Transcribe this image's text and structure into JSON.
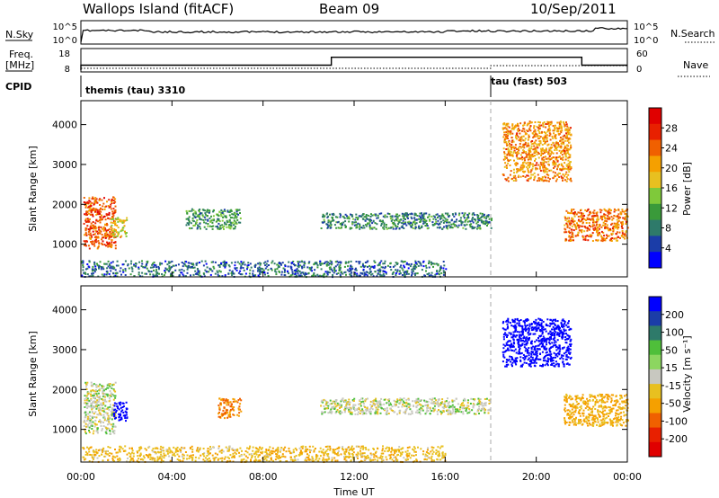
{
  "header": {
    "station": "Wallops Island (fitACF)",
    "beam": "Beam 09",
    "date": "10/Sep/2011"
  },
  "top_panels": {
    "nsky": {
      "label": "N.Sky",
      "ticks": [
        "10^5",
        "10^0"
      ]
    },
    "nsearch": {
      "label": "N.Search",
      "ticks": [
        "10^5",
        "10^0"
      ]
    },
    "freq": {
      "label_line1": "Freq.",
      "label_line2": "[MHz]",
      "ticks": [
        "18",
        "8"
      ]
    },
    "nave": {
      "label": "Nave",
      "ticks": [
        "60",
        "0"
      ]
    },
    "cpid": {
      "label": "CPID",
      "modes": [
        {
          "name": "themis (tau) 3310",
          "start_hour": 0
        },
        {
          "name": "tau (fast) 503",
          "start_hour": 18
        }
      ]
    }
  },
  "axes": {
    "xlabel": "Time UT",
    "xticks": [
      "00:00",
      "04:00",
      "08:00",
      "12:00",
      "16:00",
      "20:00",
      "00:00"
    ],
    "ylabel": "Slant Range [km]",
    "yticks": [
      "1000",
      "2000",
      "3000",
      "4000"
    ]
  },
  "power_colorbar": {
    "label": "Power [dB]",
    "ticks": [
      "4",
      "8",
      "12",
      "16",
      "20",
      "24",
      "28"
    ],
    "colors": [
      "#0000ff",
      "#1b3da8",
      "#2e7a6a",
      "#3a9a3a",
      "#7fc93a",
      "#e8c020",
      "#f5a000",
      "#f06000",
      "#e82000",
      "#e00000"
    ]
  },
  "velocity_colorbar": {
    "label": "Velocity [m s⁻¹]",
    "ticks": [
      "200",
      "100",
      "50",
      "15",
      "-15",
      "-50",
      "-100",
      "-200"
    ],
    "colors": [
      "#0000ff",
      "#1b3da8",
      "#2e7a6a",
      "#4fbf3a",
      "#8cd660",
      "#c8c8c0",
      "#e8c020",
      "#f5a000",
      "#f06000",
      "#e82000",
      "#e00000"
    ]
  },
  "chart_data": {
    "type": "heatmap",
    "x_range_hours": [
      0,
      24
    ],
    "y_range_km": [
      180,
      4600
    ],
    "mode_change_hour": 18,
    "frequency_mhz": [
      {
        "start": 0,
        "end": 11,
        "value": 10.5
      },
      {
        "start": 11,
        "end": 22,
        "value": 14.5
      },
      {
        "start": 22,
        "end": 24,
        "value": 10.5
      }
    ],
    "power_regions": [
      {
        "t0": 0.1,
        "t1": 1.5,
        "r0": 900,
        "r1": 2200,
        "level": 26
      },
      {
        "t0": 1.3,
        "t1": 2.0,
        "r0": 1200,
        "r1": 1700,
        "level": 18
      },
      {
        "t0": 4.6,
        "t1": 7.0,
        "r0": 1400,
        "r1": 1900,
        "level": 10
      },
      {
        "t0": 10.5,
        "t1": 18.0,
        "r0": 1400,
        "r1": 1800,
        "level": 8
      },
      {
        "t0": 18.5,
        "t1": 21.5,
        "r0": 2600,
        "r1": 4100,
        "level": 22
      },
      {
        "t0": 21.2,
        "t1": 24.0,
        "r0": 1100,
        "r1": 1900,
        "level": 24
      },
      {
        "t0": 0.0,
        "t1": 16.0,
        "r0": 200,
        "r1": 600,
        "level": 6
      }
    ],
    "velocity_regions": [
      {
        "t0": 0.1,
        "t1": 1.5,
        "r0": 900,
        "r1": 2200,
        "value": 0
      },
      {
        "t0": 1.4,
        "t1": 2.0,
        "r0": 1200,
        "r1": 1700,
        "value": 200
      },
      {
        "t0": 6.0,
        "t1": 7.0,
        "r0": 1300,
        "r1": 1800,
        "value": -100
      },
      {
        "t0": 10.5,
        "t1": 18.0,
        "r0": 1400,
        "r1": 1800,
        "value": 0
      },
      {
        "t0": 18.5,
        "t1": 21.5,
        "r0": 2600,
        "r1": 3800,
        "value": 180
      },
      {
        "t0": 21.2,
        "t1": 24.0,
        "r0": 1100,
        "r1": 1900,
        "value": -60
      },
      {
        "t0": 0.0,
        "t1": 16.0,
        "r0": 200,
        "r1": 600,
        "value": -40
      }
    ]
  }
}
